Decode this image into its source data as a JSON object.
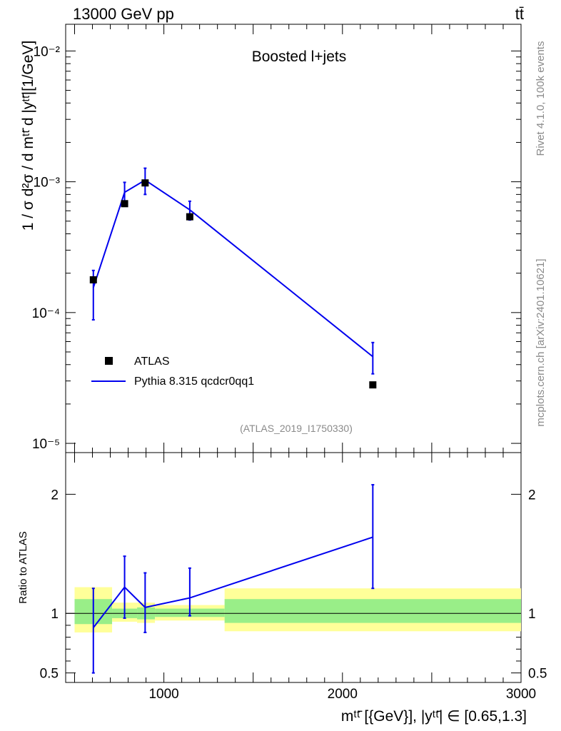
{
  "header": {
    "energy_label": "13000 GeV pp",
    "process_label": "tt̄"
  },
  "side_labels": {
    "rivet": "Rivet 4.1.0,  100k events",
    "mcplots": "mcplots.cern.ch [arXiv:2401.10621]"
  },
  "chart_data": [
    {
      "type": "scatter",
      "title": "Boosted l+jets",
      "analysis_id": "(ATLAS_2019_I1750330)",
      "ylabel": "1 / σ d²σ / d mᵗᵗ̄ d |yᵗᵗ̄|[1/GeV]",
      "yscale": "log",
      "ylim": [
        8.5e-06,
        0.016
      ],
      "xlim": [
        450,
        3000
      ],
      "y_tick_labels": [
        "10⁻⁵",
        "10⁻⁴",
        "10⁻³",
        "10⁻²"
      ],
      "y_tick_values": [
        1e-05,
        0.0001,
        0.001,
        0.01
      ],
      "legend_position": "bottom-left",
      "series": [
        {
          "name": "ATLAS",
          "style": "markers",
          "color": "#000000",
          "x": [
            605,
            780,
            895,
            1145,
            2170
          ],
          "y": [
            0.000178,
            0.00068,
            0.00098,
            0.00054,
            2.8e-05
          ]
        },
        {
          "name": "Pythia 8.315 qcdcr0qq1",
          "style": "line",
          "color": "#0000ee",
          "x": [
            605,
            780,
            895,
            1145,
            2170
          ],
          "y": [
            0.000155,
            0.00083,
            0.00103,
            0.00061,
            4.6e-05
          ],
          "err_low": [
            8.8e-05,
            0.00068,
            0.0008,
            0.00051,
            3.4e-05
          ],
          "err_high": [
            0.00021,
            0.00099,
            0.00127,
            0.00071,
            5.9e-05
          ]
        }
      ]
    },
    {
      "type": "line",
      "ylabel": "Ratio to ATLAS",
      "xlabel": "mᵗᵗ̄ [{GeV}], |yᵗᵗ̄| ∈ [0.65,1.3]",
      "xlim": [
        450,
        3000
      ],
      "ylim": [
        0.42,
        2.35
      ],
      "x_tick_labels": [
        "1000",
        "2000",
        "3000"
      ],
      "x_tick_values": [
        1000,
        2000,
        3000
      ],
      "y_tick_labels": [
        "0.5",
        "1",
        "2"
      ],
      "y_tick_values": [
        0.5,
        1,
        2
      ],
      "bands": {
        "bins": [
          [
            500,
            710
          ],
          [
            710,
            850
          ],
          [
            850,
            950
          ],
          [
            950,
            1340
          ],
          [
            1340,
            3000
          ]
        ],
        "yellow": [
          [
            0.84,
            1.22
          ],
          [
            0.93,
            1.09
          ],
          [
            0.92,
            1.09
          ],
          [
            0.94,
            1.07
          ],
          [
            0.85,
            1.21
          ]
        ],
        "green": [
          [
            0.91,
            1.12
          ],
          [
            0.96,
            1.04
          ],
          [
            0.95,
            1.05
          ],
          [
            0.97,
            1.04
          ],
          [
            0.92,
            1.12
          ]
        ],
        "yellow_color": "#ffff99",
        "green_color": "#99ee88"
      },
      "series": [
        {
          "name": "Pythia 8.315 qcdcr0qq1 / ATLAS",
          "color": "#0000ee",
          "x": [
            605,
            780,
            895,
            1145,
            2170
          ],
          "y": [
            0.88,
            1.22,
            1.05,
            1.13,
            1.64
          ],
          "err_low": [
            0.5,
            0.96,
            0.84,
            0.98,
            1.21
          ],
          "err_high": [
            1.21,
            1.48,
            1.34,
            1.38,
            2.08
          ]
        }
      ]
    }
  ]
}
